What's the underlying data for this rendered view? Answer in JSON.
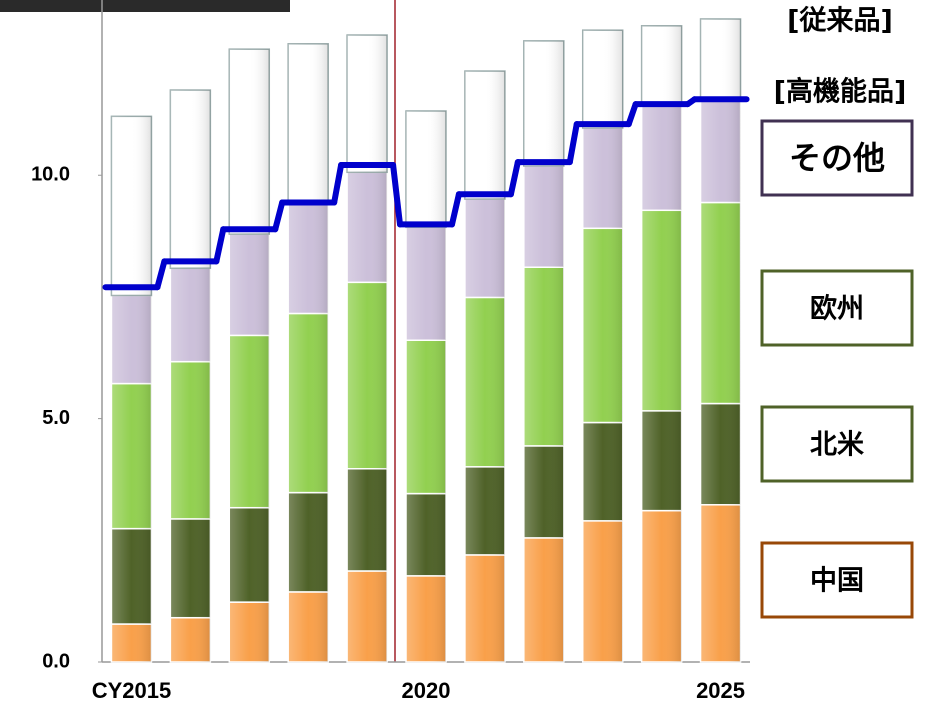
{
  "chart_data": {
    "type": "stacked_bar",
    "categories": [
      "CY2015",
      null,
      null,
      null,
      null,
      "2020",
      null,
      null,
      null,
      null,
      "2025"
    ],
    "series": [
      {
        "name": "中国",
        "color": "#f9a04a",
        "legend_color": "#984807",
        "values": [
          0.78,
          0.91,
          1.23,
          1.44,
          1.87,
          1.77,
          2.2,
          2.55,
          2.9,
          3.11,
          3.23
        ]
      },
      {
        "name": "北米",
        "color": "#4f6228",
        "legend_color": "#4f6228",
        "values": [
          1.96,
          2.03,
          1.94,
          2.04,
          2.1,
          1.69,
          1.81,
          1.89,
          2.02,
          2.05,
          2.08
        ]
      },
      {
        "name": "欧州",
        "color": "#92d050",
        "legend_color": "#4f6228",
        "values": [
          2.98,
          3.23,
          3.54,
          3.68,
          3.83,
          3.15,
          3.48,
          3.67,
          3.99,
          4.12,
          4.13
        ]
      },
      {
        "name": "その他",
        "color": "#ccc0da",
        "legend_color": "#403152",
        "values": [
          1.81,
          1.92,
          2.08,
          2.24,
          2.26,
          2.32,
          2.02,
          2.08,
          2.06,
          2.2,
          2.12
        ]
      },
      {
        "name": "[従来品]",
        "color": "#ffffff",
        "values": [
          3.68,
          3.66,
          3.8,
          3.3,
          2.82,
          2.39,
          2.63,
          2.57,
          2.01,
          1.59,
          1.65
        ]
      }
    ],
    "line": {
      "name": "[高機能品]",
      "color": "#0000cc",
      "values": [
        7.7,
        8.23,
        8.89,
        9.44,
        10.21,
        8.99,
        9.61,
        10.27,
        11.05,
        11.46,
        11.56
      ]
    },
    "ylim": [
      0,
      13.6
    ],
    "yticks": [
      {
        "value": 0,
        "label": "0.0"
      },
      {
        "value": 5,
        "label": "5.0"
      },
      {
        "value": 10,
        "label": "10.0"
      }
    ]
  }
}
